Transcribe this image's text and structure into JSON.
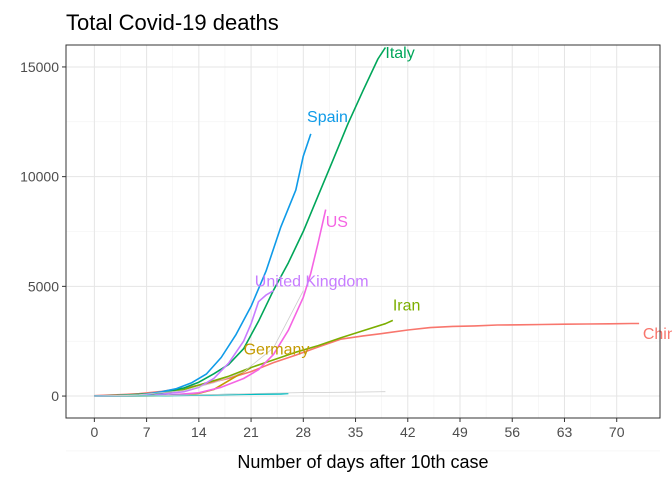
{
  "chart_data": {
    "type": "line",
    "title": "Total Covid-19 deaths",
    "xlabel": "Number of days after 10th case",
    "ylabel": "",
    "xlim": [
      -3.8,
      75.8
    ],
    "ylim": [
      -1000,
      16000
    ],
    "x_ticks": [
      0,
      7,
      14,
      21,
      28,
      35,
      42,
      49,
      56,
      63,
      70
    ],
    "y_ticks": [
      0,
      5000,
      10000,
      15000
    ],
    "grid": true,
    "legend": "none",
    "series": [
      {
        "name": "China",
        "color": "#F8766D",
        "label_at": [
          73.5,
          2600
        ],
        "points": [
          [
            0,
            17
          ],
          [
            3,
            56
          ],
          [
            6,
            106
          ],
          [
            9,
            213
          ],
          [
            12,
            361
          ],
          [
            15,
            563
          ],
          [
            18,
            811
          ],
          [
            21,
            1113
          ],
          [
            24,
            1523
          ],
          [
            27,
            1868
          ],
          [
            30,
            2236
          ],
          [
            33,
            2592
          ],
          [
            36,
            2744
          ],
          [
            39,
            2870
          ],
          [
            42,
            3012
          ],
          [
            45,
            3119
          ],
          [
            48,
            3176
          ],
          [
            51,
            3199
          ],
          [
            54,
            3237
          ],
          [
            57,
            3249
          ],
          [
            60,
            3261
          ],
          [
            63,
            3274
          ],
          [
            66,
            3283
          ],
          [
            69,
            3295
          ],
          [
            72,
            3305
          ],
          [
            73,
            3309
          ]
        ]
      },
      {
        "name": "Germany",
        "color": "#C49A00",
        "label_at": [
          20,
          1900
        ],
        "points": [
          [
            0,
            0
          ],
          [
            4,
            2
          ],
          [
            8,
            10
          ],
          [
            10,
            25
          ],
          [
            12,
            60
          ],
          [
            14,
            120
          ],
          [
            16,
            300
          ],
          [
            18,
            700
          ],
          [
            20,
            1100
          ],
          [
            21,
            1300
          ]
        ]
      },
      {
        "name": "Iran",
        "color": "#7CAE00",
        "label_at": [
          40,
          3900
        ],
        "points": [
          [
            0,
            2
          ],
          [
            3,
            15
          ],
          [
            6,
            50
          ],
          [
            9,
            120
          ],
          [
            12,
            300
          ],
          [
            15,
            600
          ],
          [
            18,
            900
          ],
          [
            21,
            1300
          ],
          [
            24,
            1650
          ],
          [
            27,
            2000
          ],
          [
            30,
            2300
          ],
          [
            33,
            2650
          ],
          [
            36,
            2980
          ],
          [
            39,
            3300
          ],
          [
            40,
            3450
          ]
        ]
      },
      {
        "name": "Italy",
        "color": "#00A65A",
        "label_at": [
          39,
          15400
        ],
        "points": [
          [
            0,
            3
          ],
          [
            3,
            29
          ],
          [
            6,
            79
          ],
          [
            9,
            148
          ],
          [
            12,
            366
          ],
          [
            14,
            631
          ],
          [
            16,
            1016
          ],
          [
            18,
            1441
          ],
          [
            20,
            2158
          ],
          [
            22,
            3405
          ],
          [
            24,
            4825
          ],
          [
            26,
            6077
          ],
          [
            28,
            7503
          ],
          [
            30,
            9134
          ],
          [
            32,
            10779
          ],
          [
            34,
            12428
          ],
          [
            36,
            13915
          ],
          [
            38,
            15362
          ],
          [
            39,
            15887
          ]
        ]
      },
      {
        "name": "Spain",
        "color": "#0F9BE8",
        "label_at": [
          28.5,
          12500
        ],
        "points": [
          [
            0,
            1
          ],
          [
            3,
            10
          ],
          [
            6,
            35
          ],
          [
            9,
            195
          ],
          [
            11,
            342
          ],
          [
            13,
            598
          ],
          [
            15,
            1002
          ],
          [
            17,
            1756
          ],
          [
            19,
            2808
          ],
          [
            21,
            4089
          ],
          [
            23,
            5690
          ],
          [
            25,
            7716
          ],
          [
            27,
            9387
          ],
          [
            28,
            10935
          ],
          [
            29,
            11947
          ]
        ]
      },
      {
        "name": "US",
        "color": "#F564E3",
        "label_at": [
          31,
          7700
        ],
        "points": [
          [
            0,
            1
          ],
          [
            5,
            12
          ],
          [
            10,
            50
          ],
          [
            14,
            150
          ],
          [
            17,
            400
          ],
          [
            20,
            800
          ],
          [
            22,
            1200
          ],
          [
            24,
            1900
          ],
          [
            26,
            3000
          ],
          [
            28,
            4500
          ],
          [
            29,
            5600
          ],
          [
            30,
            7000
          ],
          [
            31,
            8500
          ]
        ]
      },
      {
        "name": "United Kingdom",
        "color": "#C77CFF",
        "label_at": [
          21.5,
          5000
        ],
        "points": [
          [
            0,
            1
          ],
          [
            4,
            10
          ],
          [
            8,
            50
          ],
          [
            12,
            200
          ],
          [
            14,
            400
          ],
          [
            16,
            800
          ],
          [
            18,
            1500
          ],
          [
            20,
            2500
          ],
          [
            21,
            3300
          ],
          [
            22,
            4300
          ],
          [
            23,
            4600
          ],
          [
            24,
            4800
          ]
        ]
      },
      {
        "name": "",
        "color": "#00BFC4",
        "label_at": null,
        "points": [
          [
            0,
            1
          ],
          [
            5,
            5
          ],
          [
            10,
            20
          ],
          [
            15,
            50
          ],
          [
            20,
            80
          ],
          [
            25,
            100
          ],
          [
            26,
            120
          ]
        ]
      },
      {
        "name": "",
        "color": "#cccccc",
        "label_at": null,
        "points": [
          [
            0,
            0
          ],
          [
            8,
            10
          ],
          [
            15,
            60
          ],
          [
            22,
            120
          ],
          [
            29,
            160
          ],
          [
            35,
            180
          ],
          [
            39,
            200
          ]
        ]
      },
      {
        "name": "",
        "color": "#cccccc",
        "label_at": null,
        "points": [
          [
            0,
            0
          ],
          [
            6,
            60
          ],
          [
            12,
            250
          ],
          [
            16,
            600
          ],
          [
            20,
            1100
          ],
          [
            24,
            2200
          ],
          [
            28,
            4800
          ]
        ]
      }
    ]
  }
}
